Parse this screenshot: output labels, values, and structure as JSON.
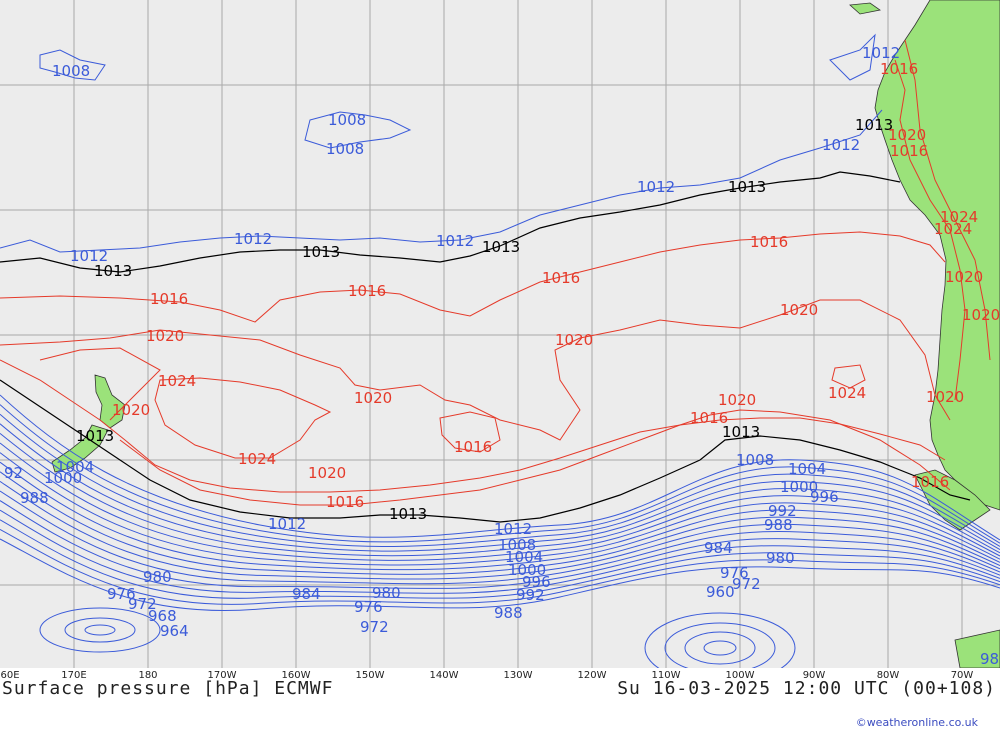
{
  "map": {
    "title": "Surface pressure [hPa] ECMWF",
    "valid_time": "Su 16-03-2025 12:00 UTC (00+108)",
    "credit": "©weatheronline.co.uk",
    "longitude_labels": [
      "60E",
      "170E",
      "180",
      "170W",
      "160W",
      "150W",
      "140W",
      "130W",
      "120W",
      "110W",
      "100W",
      "90W",
      "80W",
      "70W"
    ],
    "isobar_labels": {
      "l1008a": "1008",
      "l1008b": "1008",
      "l1008c": "1008",
      "l1012a": "1012",
      "l1012b": "1012",
      "l1012c": "1012",
      "l1012d": "1012",
      "l1012e": "1012",
      "l1012f": "1012",
      "l1013a": "1013",
      "l1013b": "1013",
      "l1013c": "1013",
      "l1013d": "1013",
      "l1013e": "1013",
      "l1013f": "1013",
      "l1013g": "1013",
      "l1016a": "1016",
      "l1016b": "1016",
      "l1016c": "1016",
      "l1016d": "1016",
      "l1016e": "1016",
      "l1016f": "1016",
      "l1016g": "1016",
      "l1016h": "1016",
      "l1016i": "1016",
      "l1020a": "1020",
      "l1020b": "1020",
      "l1020c": "1020",
      "l1020d": "1020",
      "l1020e": "1020",
      "l1020f": "1020",
      "l1020g": "1020",
      "l1020h": "1020",
      "l1020i": "1020",
      "l1024a": "1024",
      "l1024b": "1024",
      "l1024c": "1024",
      "l1024d": "1024",
      "l1012s1": "1012",
      "l1012s2": "1012",
      "l1008s1": "1008",
      "l1008s2": "1008",
      "l1004s1": "1004",
      "l1004s2": "1004",
      "l1004s3": "1004",
      "l1000s1": "1000",
      "l1000s2": "1000",
      "l1000s3": "1000",
      "l996a": "996",
      "l996b": "996",
      "l992a": "992",
      "l992b": "992",
      "l992c": "92",
      "l988a": "988",
      "l988b": "988",
      "l988c": "988",
      "l984a": "984",
      "l984b": "984",
      "l980a": "980",
      "l980b": "980",
      "l980c": "980",
      "l976a": "976",
      "l976b": "976",
      "l976c": "976",
      "l972a": "972",
      "l972b": "972",
      "l972c": "972",
      "l968a": "968",
      "l964a": "964",
      "l960a": "960",
      "l98r": "98"
    }
  }
}
